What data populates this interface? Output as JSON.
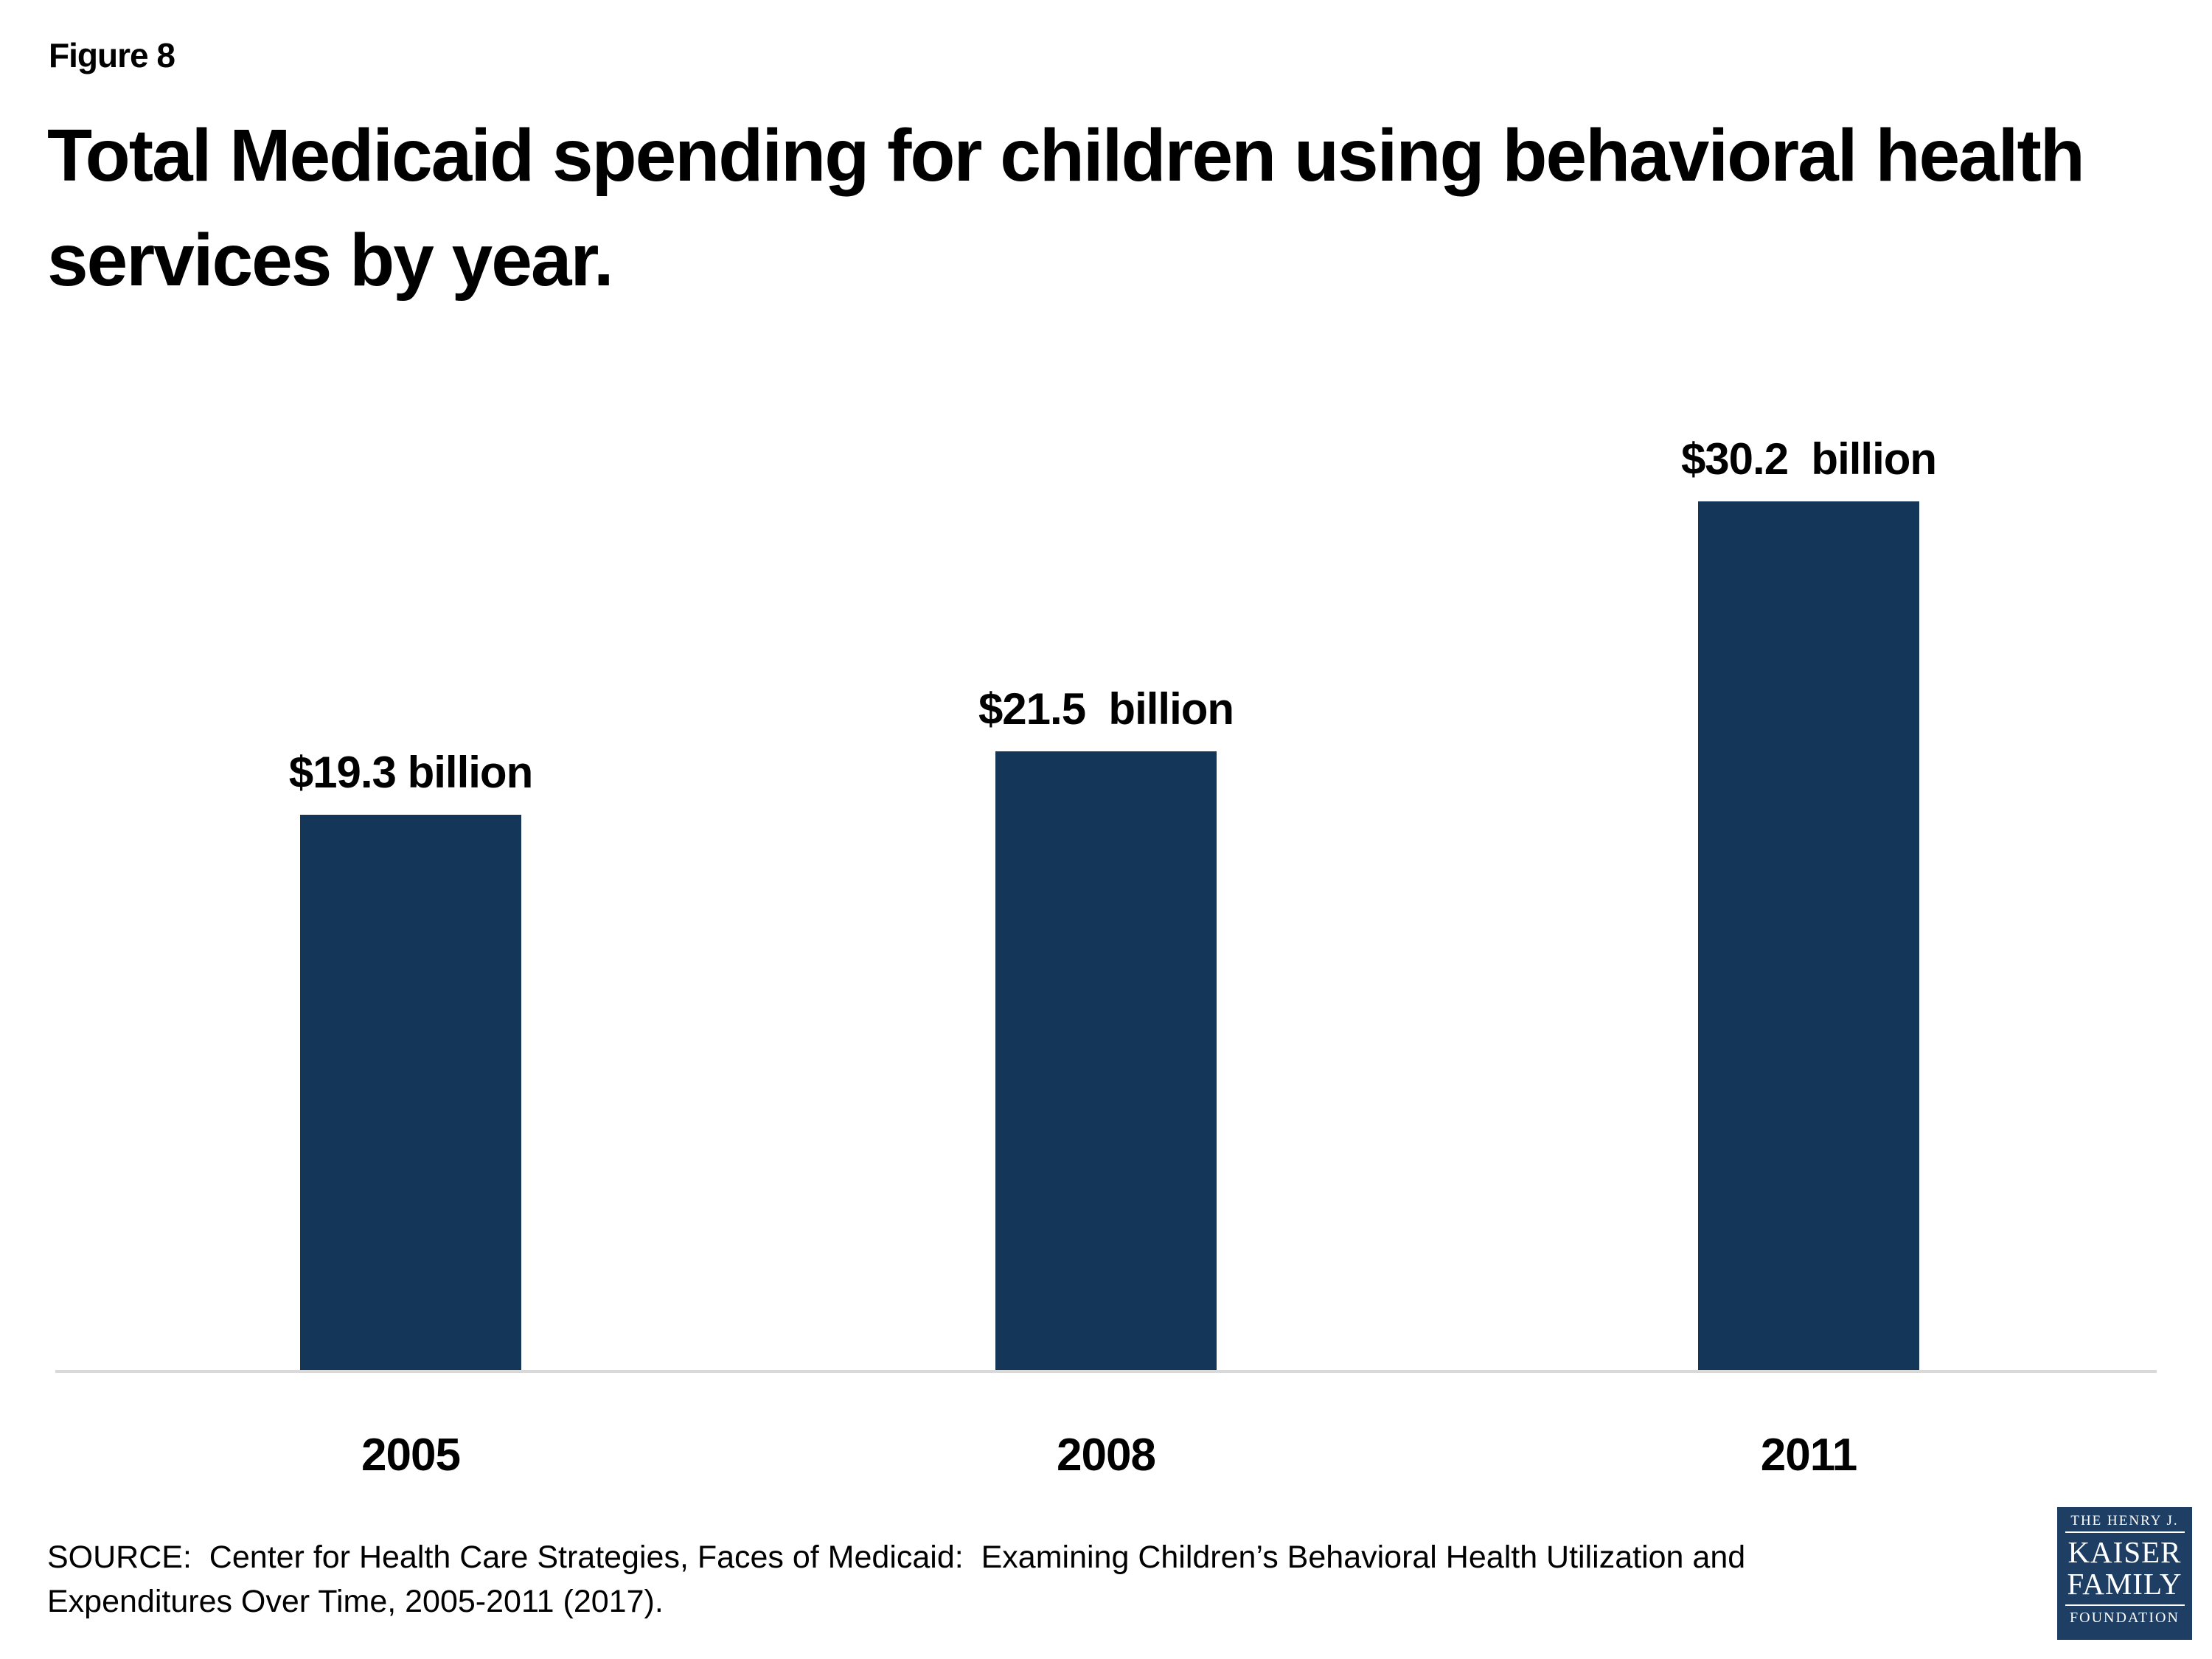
{
  "figure_label": "Figure 8",
  "title": "Total Medicaid spending for children using behavioral health services by year.",
  "source_note": "SOURCE:  Center for Health Care Strategies, Faces of Medicaid:  Examining Children’s Behavioral Health Utilization and\nExpenditures Over Time, 2005-2011 (2017).",
  "logo": {
    "line1": "THE HENRY J.",
    "line2": "KAISER",
    "line3": "FAMILY",
    "line4": "FOUNDATION"
  },
  "colors": {
    "bar": "#143659",
    "axis_line": "#D9D9D9",
    "logo_background": "#1E3E64",
    "text": "#000000"
  },
  "chart_data": {
    "type": "bar",
    "title": "Total Medicaid spending for children using behavioral health services by year.",
    "categories": [
      "2005",
      "2008",
      "2011"
    ],
    "values": [
      19.3,
      21.5,
      30.2
    ],
    "value_labels": [
      "$19.3 billion",
      "$21.5  billion",
      "$30.2  billion"
    ],
    "units": "billions of dollars",
    "xlabel": "",
    "ylabel": "",
    "ylim": [
      0,
      32
    ],
    "gridlines": false,
    "legend": "none",
    "bar_color": "#143659",
    "baseline_axis": "x-axis only, light gray"
  }
}
